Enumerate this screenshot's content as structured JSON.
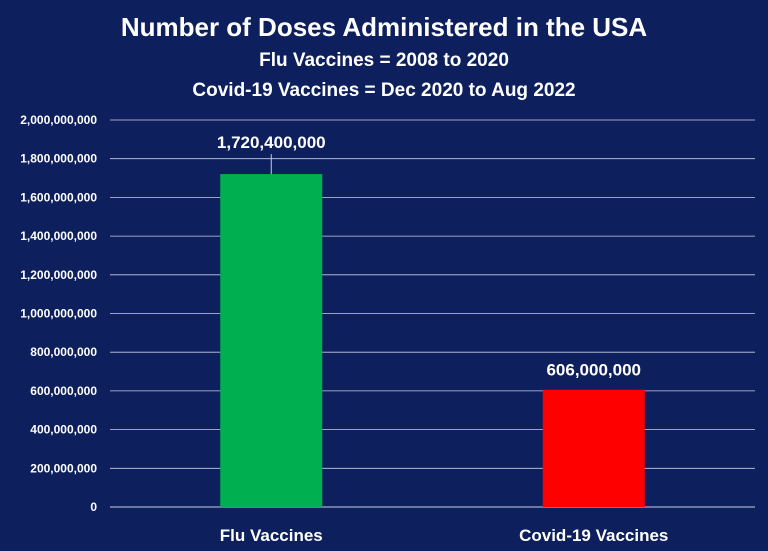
{
  "chart_data": {
    "type": "bar",
    "title": "Number of Doses Administered in the USA",
    "subtitle_lines": [
      "Flu Vaccines = 2008 to 2020",
      "Covid-19 Vaccines = Dec 2020 to Aug 2022"
    ],
    "categories": [
      "Flu Vaccines",
      "Covid-19 Vaccines"
    ],
    "values": [
      1720400000,
      606000000
    ],
    "data_labels": [
      "1,720,400,000",
      "606,000,000"
    ],
    "colors": [
      "#00b050",
      "#ff0000"
    ],
    "ylim": [
      0,
      2000000000
    ],
    "yticks": [
      0,
      200000000,
      400000000,
      600000000,
      800000000,
      1000000000,
      1200000000,
      1400000000,
      1600000000,
      1800000000,
      2000000000
    ],
    "ytick_labels": [
      "0",
      "200,000,000",
      "400,000,000",
      "600,000,000",
      "800,000,000",
      "1,000,000,000",
      "1,200,000,000",
      "1,400,000,000",
      "1,600,000,000",
      "1,800,000,000",
      "2,000,000,000"
    ],
    "grid": true,
    "legend": "none",
    "background": "#0d1f5c",
    "xlabel": "",
    "ylabel": ""
  }
}
